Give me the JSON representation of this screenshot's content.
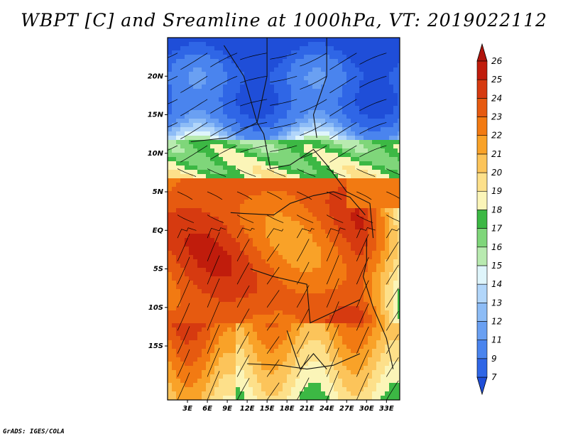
{
  "title": "WBPT [C] and Sreamline at 1000hPa, VT: 2019022112",
  "credit": "GrADS: IGES/COLA",
  "map": {
    "lat_range": [
      -22,
      25
    ],
    "lon_range": [
      0,
      35
    ],
    "lat_ticks": [
      {
        "value": 20,
        "label": "20N"
      },
      {
        "value": 15,
        "label": "15N"
      },
      {
        "value": 10,
        "label": "10N"
      },
      {
        "value": 5,
        "label": "5N"
      },
      {
        "value": 0,
        "label": "EQ"
      },
      {
        "value": -5,
        "label": "5S"
      },
      {
        "value": -10,
        "label": "10S"
      },
      {
        "value": -15,
        "label": "15S"
      }
    ],
    "lon_ticks": [
      {
        "value": 3,
        "label": "3E"
      },
      {
        "value": 6,
        "label": "6E"
      },
      {
        "value": 9,
        "label": "9E"
      },
      {
        "value": 12,
        "label": "12E"
      },
      {
        "value": 15,
        "label": "15E"
      },
      {
        "value": 18,
        "label": "18E"
      },
      {
        "value": 21,
        "label": "21E"
      },
      {
        "value": 24,
        "label": "24E"
      },
      {
        "value": 27,
        "label": "27E"
      },
      {
        "value": 30,
        "label": "30E"
      },
      {
        "value": 33,
        "label": "33E"
      }
    ]
  },
  "colorbar": {
    "levels": [
      {
        "label": "7",
        "color": "#1f4ed8"
      },
      {
        "label": "9",
        "color": "#2f66e6"
      },
      {
        "label": "11",
        "color": "#4a84ee"
      },
      {
        "label": "12",
        "color": "#6aa0f2"
      },
      {
        "label": "13",
        "color": "#8dbcf6"
      },
      {
        "label": "14",
        "color": "#b2d6fa"
      },
      {
        "label": "15",
        "color": "#dff5fb"
      },
      {
        "label": "16",
        "color": "#b8eab0"
      },
      {
        "label": "17",
        "color": "#7fd67a"
      },
      {
        "label": "18",
        "color": "#3cb844"
      },
      {
        "label": "19",
        "color": "#fbf5b8"
      },
      {
        "label": "20",
        "color": "#fde08a"
      },
      {
        "label": "21",
        "color": "#fcc45a"
      },
      {
        "label": "22",
        "color": "#f9a228"
      },
      {
        "label": "23",
        "color": "#f27a12"
      },
      {
        "label": "24",
        "color": "#e65a10"
      },
      {
        "label": "25",
        "color": "#d63a10"
      },
      {
        "label": "26",
        "color": "#c01c0c"
      }
    ],
    "under_color": "#1f4ed8",
    "over_color": "#b0140c"
  }
}
